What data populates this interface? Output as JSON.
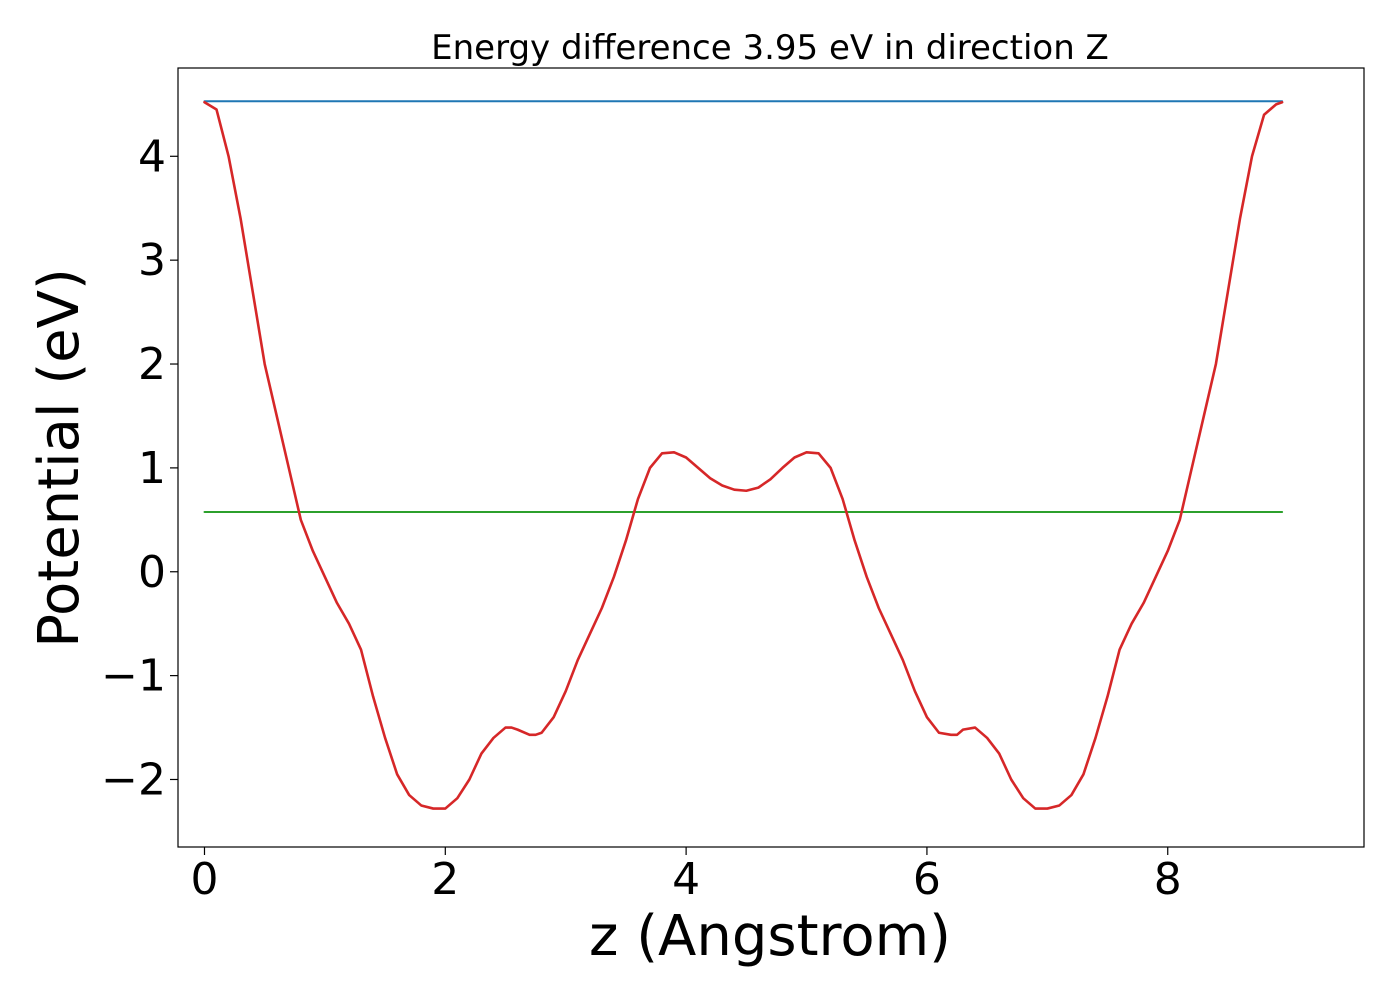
{
  "chart_data": {
    "type": "line",
    "title": "Energy difference 3.95 eV in direction Z",
    "xlabel": "z (Angstrom)",
    "ylabel": "Potential (eV)",
    "xlim": [
      -0.22,
      9.63
    ],
    "ylim": [
      -2.65,
      4.85
    ],
    "xticks": [
      0,
      2,
      4,
      6,
      8
    ],
    "xtick_labels": [
      "0",
      "2",
      "4",
      "6",
      "8"
    ],
    "yticks": [
      -2,
      -1,
      0,
      1,
      2,
      3,
      4
    ],
    "ytick_labels": [
      "−2",
      "−1",
      "0",
      "1",
      "2",
      "3",
      "4"
    ],
    "grid": false,
    "series": [
      {
        "color": "#d62728",
        "x": [
          0.0,
          0.1,
          0.2,
          0.3,
          0.4,
          0.5,
          0.6,
          0.7,
          0.8,
          0.9,
          1.0,
          1.1,
          1.2,
          1.3,
          1.4,
          1.5,
          1.6,
          1.7,
          1.8,
          1.9,
          2.0,
          2.1,
          2.2,
          2.3,
          2.4,
          2.5,
          2.55,
          2.6,
          2.7,
          2.75,
          2.8,
          2.9,
          3.0,
          3.1,
          3.2,
          3.3,
          3.4,
          3.5,
          3.6,
          3.7,
          3.8,
          3.9,
          4.0,
          4.1,
          4.2,
          4.3,
          4.4,
          4.5,
          4.6,
          4.7,
          4.8,
          4.9,
          5.0,
          5.1,
          5.2,
          5.3,
          5.4,
          5.5,
          5.6,
          5.7,
          5.8,
          5.9,
          6.0,
          6.1,
          6.2,
          6.25,
          6.3,
          6.4,
          6.5,
          6.6,
          6.7,
          6.8,
          6.9,
          7.0,
          7.1,
          7.2,
          7.3,
          7.4,
          7.5,
          7.6,
          7.7,
          7.8,
          7.9,
          8.0,
          8.1,
          8.2,
          8.3,
          8.4,
          8.5,
          8.6,
          8.7,
          8.8,
          8.9,
          8.95
        ],
        "y": [
          4.52,
          4.45,
          4.0,
          3.4,
          2.7,
          2.0,
          1.5,
          1.0,
          0.5,
          0.2,
          -0.05,
          -0.3,
          -0.5,
          -0.75,
          -1.2,
          -1.6,
          -1.95,
          -2.15,
          -2.25,
          -2.28,
          -2.28,
          -2.18,
          -2.0,
          -1.75,
          -1.6,
          -1.5,
          -1.5,
          -1.52,
          -1.57,
          -1.57,
          -1.55,
          -1.4,
          -1.15,
          -0.85,
          -0.6,
          -0.35,
          -0.05,
          0.3,
          0.7,
          1.0,
          1.14,
          1.15,
          1.1,
          1.0,
          0.9,
          0.83,
          0.79,
          0.78,
          0.81,
          0.89,
          1.0,
          1.1,
          1.15,
          1.14,
          1.0,
          0.7,
          0.3,
          -0.05,
          -0.35,
          -0.6,
          -0.85,
          -1.15,
          -1.4,
          -1.55,
          -1.57,
          -1.57,
          -1.52,
          -1.5,
          -1.6,
          -1.75,
          -2.0,
          -2.18,
          -2.28,
          -2.28,
          -2.25,
          -2.15,
          -1.95,
          -1.6,
          -1.2,
          -0.75,
          -0.5,
          -0.3,
          -0.05,
          0.2,
          0.5,
          1.0,
          1.5,
          2.0,
          2.7,
          3.4,
          4.0,
          4.4,
          4.5,
          4.52
        ]
      },
      {
        "color": "#1f77b4",
        "x": [
          0.0,
          8.95
        ],
        "y": [
          4.53,
          4.53
        ]
      },
      {
        "color": "#2ca02c",
        "x": [
          0.0,
          8.95
        ],
        "y": [
          0.575,
          0.575
        ]
      }
    ]
  }
}
